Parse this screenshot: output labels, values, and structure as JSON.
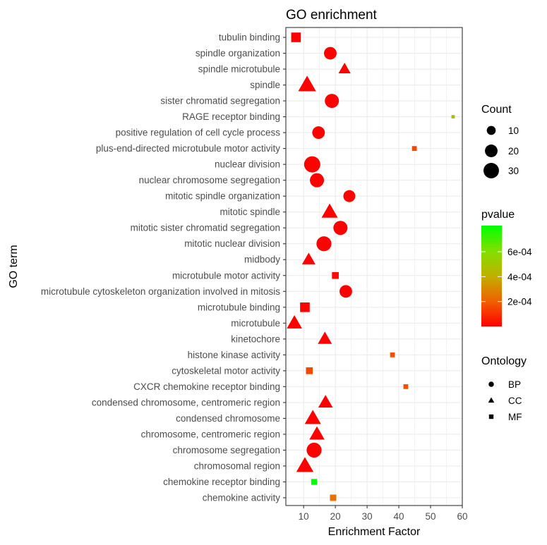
{
  "chart_data": {
    "type": "scatter",
    "title": "GO enrichment",
    "xlabel": "Enrichment Factor",
    "ylabel": "GO term",
    "xlim": [
      4.4,
      60.0
    ],
    "xticks": [
      10,
      20,
      30,
      40,
      50,
      60
    ],
    "grid": true,
    "pvalue_range": [
      0,
      0.00081
    ],
    "colors": {
      "low": "#FF0000",
      "high": "#00FF00"
    },
    "points": [
      {
        "term": "tubulin binding",
        "x": 7.6,
        "count": 16,
        "ontology": "MF",
        "pvalue": 2e-06
      },
      {
        "term": "spindle organization",
        "x": 18.4,
        "count": 20,
        "ontology": "BP",
        "pvalue": 2e-06
      },
      {
        "term": "spindle microtubule",
        "x": 22.9,
        "count": 14,
        "ontology": "CC",
        "pvalue": 2e-06
      },
      {
        "term": "spindle",
        "x": 11.1,
        "count": 30,
        "ontology": "CC",
        "pvalue": 2e-06
      },
      {
        "term": "sister chromatid segregation",
        "x": 18.9,
        "count": 25,
        "ontology": "BP",
        "pvalue": 2e-06
      },
      {
        "term": "RAGE receptor binding",
        "x": 57.1,
        "count": 2,
        "ontology": "MF",
        "pvalue": 0.00046
      },
      {
        "term": "positive regulation of cell cycle process",
        "x": 14.7,
        "count": 20,
        "ontology": "BP",
        "pvalue": 2e-06
      },
      {
        "term": "plus-end-directed microtubule motor activity",
        "x": 44.9,
        "count": 4,
        "ontology": "MF",
        "pvalue": 0.00015
      },
      {
        "term": "nuclear division",
        "x": 12.7,
        "count": 33,
        "ontology": "BP",
        "pvalue": 2e-06
      },
      {
        "term": "nuclear chromosome segregation",
        "x": 14.2,
        "count": 25,
        "ontology": "BP",
        "pvalue": 2e-06
      },
      {
        "term": "mitotic spindle organization",
        "x": 24.4,
        "count": 18,
        "ontology": "BP",
        "pvalue": 2e-06
      },
      {
        "term": "mitotic spindle",
        "x": 18.2,
        "count": 25,
        "ontology": "CC",
        "pvalue": 2e-06
      },
      {
        "term": "mitotic sister chromatid segregation",
        "x": 21.6,
        "count": 25,
        "ontology": "BP",
        "pvalue": 2e-06
      },
      {
        "term": "mitotic nuclear division",
        "x": 16.4,
        "count": 28,
        "ontology": "BP",
        "pvalue": 2e-06
      },
      {
        "term": "midbody",
        "x": 11.6,
        "count": 17,
        "ontology": "CC",
        "pvalue": 2e-06
      },
      {
        "term": "microtubule motor activity",
        "x": 20.0,
        "count": 8,
        "ontology": "MF",
        "pvalue": 2e-05
      },
      {
        "term": "microtubule cytoskeleton organization involved in mitosis",
        "x": 23.3,
        "count": 20,
        "ontology": "BP",
        "pvalue": 2e-06
      },
      {
        "term": "microtubule binding",
        "x": 10.4,
        "count": 16,
        "ontology": "MF",
        "pvalue": 2e-06
      },
      {
        "term": "microtubule",
        "x": 7.1,
        "count": 22,
        "ontology": "CC",
        "pvalue": 2e-06
      },
      {
        "term": "kinetochore",
        "x": 16.7,
        "count": 19,
        "ontology": "CC",
        "pvalue": 2e-06
      },
      {
        "term": "histone kinase activity",
        "x": 38.0,
        "count": 4,
        "ontology": "MF",
        "pvalue": 0.00017
      },
      {
        "term": "cytoskeletal motor activity",
        "x": 11.8,
        "count": 8,
        "ontology": "MF",
        "pvalue": 0.00015
      },
      {
        "term": "CXCR chemokine receptor binding",
        "x": 42.2,
        "count": 4,
        "ontology": "MF",
        "pvalue": 0.00017
      },
      {
        "term": "condensed chromosome, centromeric region",
        "x": 16.9,
        "count": 20,
        "ontology": "CC",
        "pvalue": 2e-06
      },
      {
        "term": "condensed chromosome",
        "x": 12.9,
        "count": 25,
        "ontology": "CC",
        "pvalue": 2e-06
      },
      {
        "term": "chromosome, centromeric region",
        "x": 14.2,
        "count": 22,
        "ontology": "CC",
        "pvalue": 2e-06
      },
      {
        "term": "chromosome segregation",
        "x": 13.3,
        "count": 28,
        "ontology": "BP",
        "pvalue": 2e-06
      },
      {
        "term": "chromosomal region",
        "x": 10.4,
        "count": 28,
        "ontology": "CC",
        "pvalue": 2e-06
      },
      {
        "term": "chemokine receptor binding",
        "x": 13.3,
        "count": 6,
        "ontology": "MF",
        "pvalue": 0.00081
      },
      {
        "term": "chemokine activity",
        "x": 19.3,
        "count": 7,
        "ontology": "MF",
        "pvalue": 0.00025
      }
    ],
    "legends": {
      "count": {
        "title": "Count",
        "values": [
          10,
          20,
          30
        ],
        "labels": [
          "10",
          "20",
          "30"
        ]
      },
      "pvalue": {
        "title": "pvalue",
        "breaks": [
          0.0002,
          0.0004,
          0.0006
        ],
        "labels": [
          "2e-04",
          "4e-04",
          "6e-04"
        ]
      },
      "ontology": {
        "title": "Ontology",
        "labels": [
          "BP",
          "CC",
          "MF"
        ],
        "shapes": [
          "circle",
          "triangle",
          "square"
        ]
      }
    },
    "legend_placement": "right"
  }
}
